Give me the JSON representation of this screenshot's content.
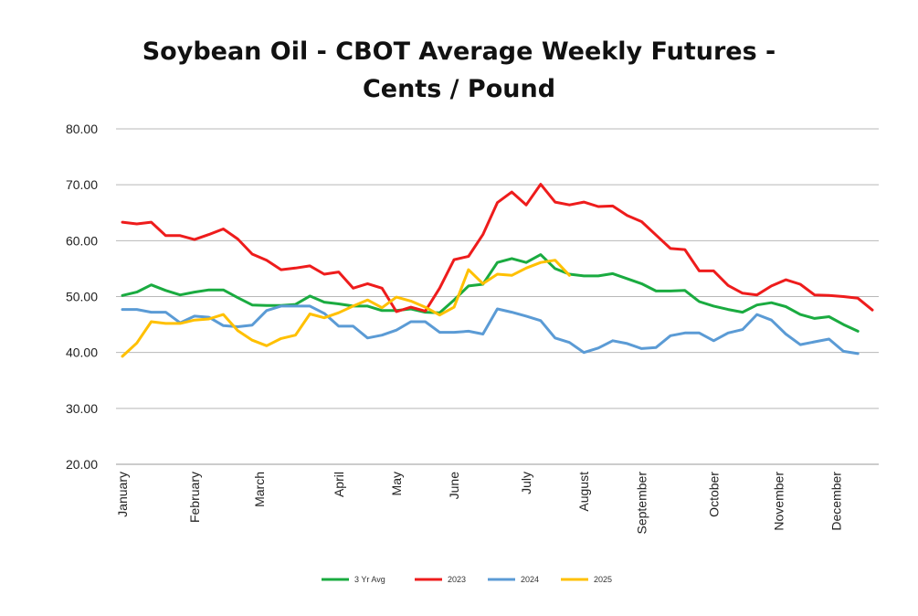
{
  "chart_data": {
    "type": "line",
    "title_line1": "Soybean Oil - CBOT Average Weekly Futures -",
    "title_line2": "Cents / Pound",
    "ylim": [
      20,
      80
    ],
    "yticks": [
      "80.00",
      "70.00",
      "60.00",
      "50.00",
      "40.00",
      "30.00",
      "20.00"
    ],
    "ytick_values": [
      80,
      70,
      60,
      50,
      40,
      30,
      20
    ],
    "xlim": [
      1,
      53
    ],
    "month_labels": [
      "January",
      "February",
      "March",
      "April",
      "May",
      "June",
      "July",
      "August",
      "September",
      "October",
      "November",
      "December"
    ],
    "month_weeks": [
      1,
      6,
      10.5,
      16,
      20,
      24,
      29,
      33,
      37,
      42,
      46.5,
      50.5
    ],
    "grid": true,
    "legend_position": "bottom",
    "series": [
      {
        "name": "3 Yr Avg",
        "color": "#1AAB40",
        "x": [
          1,
          2,
          3,
          4,
          5,
          6,
          7,
          8,
          9,
          10,
          11,
          12,
          13,
          14,
          15,
          16,
          17,
          18,
          19,
          20,
          21,
          22,
          23,
          24,
          25,
          26,
          27,
          28,
          29,
          30,
          31,
          32,
          33,
          34,
          35,
          36,
          37,
          38,
          39,
          40,
          41,
          42,
          43,
          44,
          45,
          46,
          47,
          48,
          49,
          50,
          51,
          52,
          53
        ],
        "values": [
          50.2,
          50.8,
          52.1,
          51.1,
          50.3,
          50.8,
          51.2,
          51.2,
          49.8,
          48.5,
          48.4,
          48.4,
          48.6,
          50.1,
          49.0,
          48.7,
          48.3,
          48.3,
          47.5,
          47.5,
          47.8,
          47.2,
          47.1,
          49.4,
          51.9,
          52.2,
          56.1,
          56.8,
          56.1,
          57.5,
          55.0,
          54.0,
          53.7,
          53.7,
          54.1,
          53.2,
          52.3,
          51.0,
          51.0,
          51.1,
          49.1,
          48.3,
          47.7,
          47.2,
          48.5,
          48.9,
          48.2,
          46.8,
          46.1,
          46.4,
          45.0,
          43.8,
          null
        ]
      },
      {
        "name": "2023",
        "color": "#EE1C1C",
        "x": [
          1,
          2,
          3,
          4,
          5,
          6,
          7,
          8,
          9,
          10,
          11,
          12,
          13,
          14,
          15,
          16,
          17,
          18,
          19,
          20,
          21,
          22,
          23,
          24,
          25,
          26,
          27,
          28,
          29,
          30,
          31,
          32,
          33,
          34,
          35,
          36,
          37,
          38,
          39,
          40,
          41,
          42,
          43,
          44,
          45,
          46,
          47,
          48,
          49,
          50,
          51,
          52,
          53
        ],
        "values": [
          63.3,
          63.0,
          63.3,
          60.9,
          60.9,
          60.2,
          61.1,
          62.1,
          60.3,
          57.6,
          56.5,
          54.8,
          55.1,
          55.5,
          54.0,
          54.4,
          51.5,
          52.3,
          51.5,
          47.3,
          48.1,
          47.4,
          51.5,
          56.6,
          57.2,
          61.1,
          66.8,
          68.7,
          66.4,
          70.1,
          66.9,
          66.4,
          66.9,
          66.1,
          66.2,
          64.5,
          63.4,
          61.0,
          58.6,
          58.4,
          54.6,
          54.6,
          52.0,
          50.6,
          50.3,
          51.9,
          53.0,
          52.2,
          50.3,
          50.2,
          50.0,
          49.7,
          47.6
        ]
      },
      {
        "name": "2024",
        "color": "#5B9BD5",
        "x": [
          1,
          2,
          3,
          4,
          5,
          6,
          7,
          8,
          9,
          10,
          11,
          12,
          13,
          14,
          15,
          16,
          17,
          18,
          19,
          20,
          21,
          22,
          23,
          24,
          25,
          26,
          27,
          28,
          29,
          30,
          31,
          32,
          33,
          34,
          35,
          36,
          37,
          38,
          39,
          40,
          41,
          42,
          43,
          44,
          45,
          46,
          47,
          48,
          49,
          50,
          51,
          52,
          53
        ],
        "values": [
          47.7,
          47.7,
          47.2,
          47.2,
          45.3,
          46.5,
          46.3,
          44.8,
          44.6,
          44.9,
          47.5,
          48.3,
          48.3,
          48.3,
          47.0,
          44.7,
          44.7,
          42.6,
          43.1,
          44.0,
          45.5,
          45.5,
          43.6,
          43.6,
          43.8,
          43.3,
          47.8,
          47.2,
          46.5,
          45.7,
          42.6,
          41.8,
          40.0,
          40.8,
          42.1,
          41.6,
          40.7,
          40.9,
          43.0,
          43.5,
          43.5,
          42.1,
          43.5,
          44.1,
          46.8,
          45.8,
          43.3,
          41.4,
          41.9,
          42.4,
          40.2,
          39.8,
          null
        ]
      },
      {
        "name": "2025",
        "color": "#FFC000",
        "x": [
          1,
          2,
          3,
          4,
          5,
          6,
          7,
          8,
          9,
          10,
          11,
          12,
          13,
          14,
          15,
          16,
          17,
          18,
          19,
          20,
          21,
          22,
          23,
          24,
          25,
          26,
          27,
          28,
          29,
          30,
          31,
          32,
          33,
          34,
          35,
          36,
          37,
          38,
          39,
          40,
          41,
          42,
          43,
          44,
          45,
          46,
          47,
          48,
          49,
          50,
          51,
          52,
          53
        ],
        "values": [
          39.3,
          41.7,
          45.5,
          45.2,
          45.2,
          45.8,
          46.0,
          46.8,
          43.9,
          42.2,
          41.2,
          42.5,
          43.1,
          46.9,
          46.2,
          47.1,
          48.3,
          49.4,
          48.0,
          49.9,
          49.2,
          48.1,
          46.7,
          48.1,
          54.8,
          52.3,
          54.0,
          53.8,
          55.1,
          56.1,
          56.5,
          53.8,
          null,
          null,
          null,
          null,
          null,
          null,
          null,
          null,
          null,
          null,
          null,
          null,
          null,
          null,
          null,
          null,
          null,
          null,
          null,
          null,
          null
        ]
      }
    ]
  }
}
